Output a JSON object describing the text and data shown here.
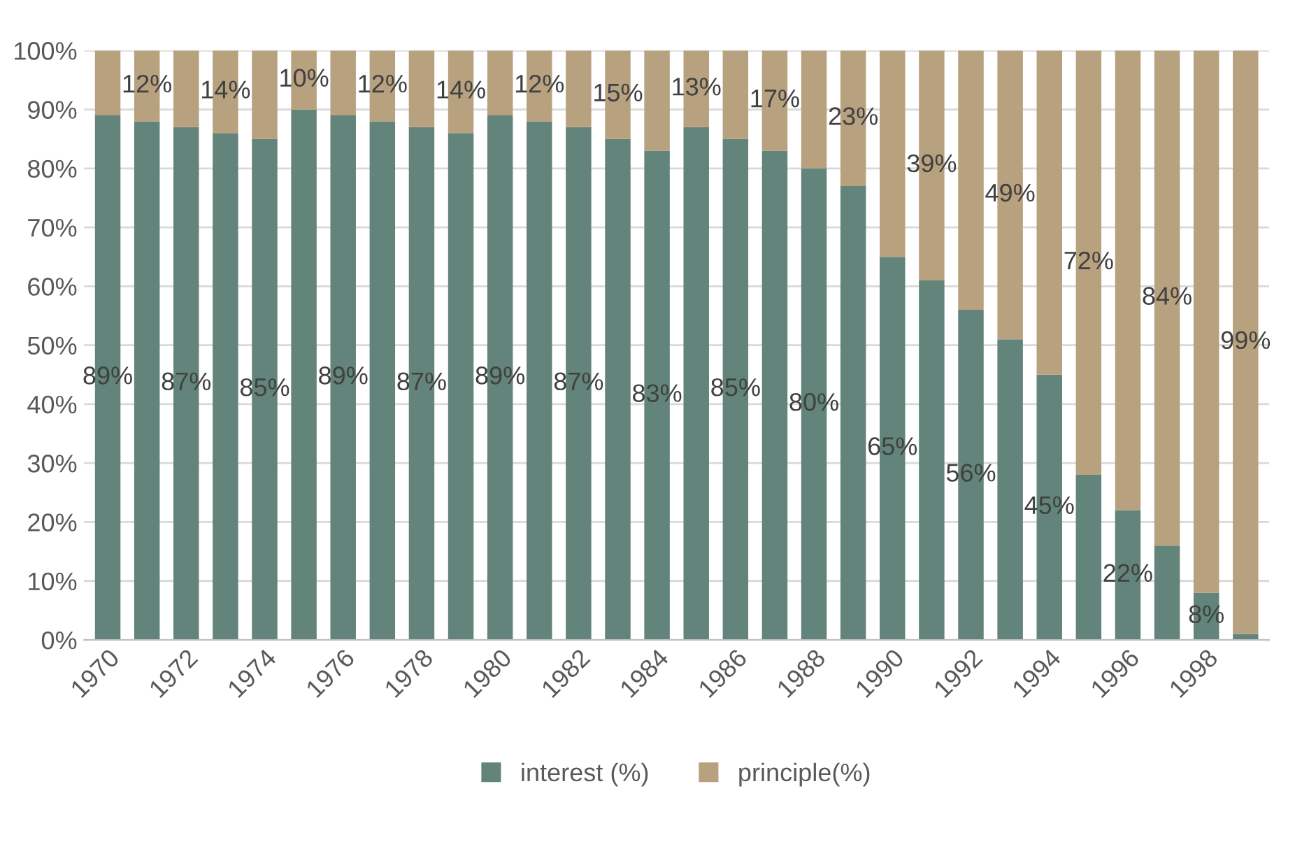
{
  "chart_data": {
    "type": "bar",
    "stacked": true,
    "categories": [
      "1970",
      null,
      "1972",
      null,
      "1974",
      null,
      "1976",
      null,
      "1978",
      null,
      "1980",
      null,
      "1982",
      null,
      "1984",
      null,
      "1986",
      null,
      "1988",
      null,
      "1990",
      null,
      "1992",
      null,
      "1994",
      null,
      "1996",
      null,
      "1998",
      null
    ],
    "series": [
      {
        "name": "interest (%)",
        "color": "#62847a",
        "values": [
          89,
          88,
          87,
          86,
          85,
          90,
          89,
          88,
          87,
          86,
          89,
          88,
          87,
          85,
          83,
          87,
          85,
          83,
          80,
          77,
          65,
          61,
          56,
          51,
          45,
          28,
          22,
          16,
          8,
          1
        ],
        "value_labels": [
          "89%",
          null,
          "87%",
          null,
          "85%",
          null,
          "89%",
          null,
          "87%",
          null,
          "89%",
          null,
          "87%",
          null,
          "83%",
          null,
          "85%",
          null,
          "80%",
          null,
          "65%",
          null,
          "56%",
          null,
          "45%",
          null,
          "22%",
          null,
          "8%",
          null
        ]
      },
      {
        "name": "principle(%)",
        "color": "#b8a17f",
        "values": [
          11,
          12,
          13,
          14,
          15,
          10,
          11,
          12,
          13,
          14,
          11,
          12,
          13,
          15,
          17,
          13,
          15,
          17,
          20,
          23,
          35,
          39,
          44,
          49,
          55,
          72,
          78,
          84,
          92,
          99
        ],
        "value_labels": [
          null,
          "12%",
          null,
          "14%",
          null,
          "10%",
          null,
          "12%",
          null,
          "14%",
          null,
          "12%",
          null,
          "15%",
          null,
          "13%",
          null,
          "17%",
          null,
          "23%",
          null,
          "39%",
          null,
          "49%",
          null,
          "72%",
          null,
          "84%",
          null,
          "99%"
        ]
      }
    ],
    "ylim": [
      0,
      100
    ],
    "yticks": [
      {
        "value": 0,
        "label": "0%"
      },
      {
        "value": 10,
        "label": "10%"
      },
      {
        "value": 20,
        "label": "20%"
      },
      {
        "value": 30,
        "label": "30%"
      },
      {
        "value": 40,
        "label": "40%"
      },
      {
        "value": 50,
        "label": "50%"
      },
      {
        "value": 60,
        "label": "60%"
      },
      {
        "value": 70,
        "label": "70%"
      },
      {
        "value": 80,
        "label": "80%"
      },
      {
        "value": 90,
        "label": "90%"
      },
      {
        "value": 100,
        "label": "100%"
      }
    ],
    "grid": "y",
    "legend": "bottom"
  }
}
